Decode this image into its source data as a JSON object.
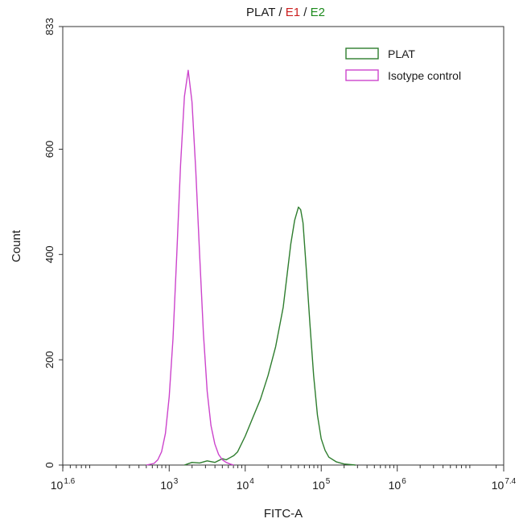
{
  "chart_data": {
    "type": "line",
    "title_parts": [
      {
        "text": "PLAT",
        "color": "#1a1a1a"
      },
      {
        "text": " / ",
        "color": "#1a1a1a"
      },
      {
        "text": "E1",
        "color": "#cc1f1f"
      },
      {
        "text": " / ",
        "color": "#1a1a1a"
      },
      {
        "text": "E2",
        "color": "#1c8a1c"
      }
    ],
    "xlabel": "FITC-A",
    "ylabel": "Count",
    "x_scale": "log10",
    "xlim": [
      1.6,
      7.4
    ],
    "ylim": [
      0,
      833
    ],
    "x_ticks": [
      {
        "exp": 1.6,
        "base": "10",
        "sup": "1.6"
      },
      {
        "exp": 3,
        "base": "10",
        "sup": "3"
      },
      {
        "exp": 4,
        "base": "10",
        "sup": "4"
      },
      {
        "exp": 5,
        "base": "10",
        "sup": "5"
      },
      {
        "exp": 6,
        "base": "10",
        "sup": "6"
      },
      {
        "exp": 7.4,
        "base": "10",
        "sup": "7.4"
      }
    ],
    "y_ticks": [
      0,
      200,
      400,
      600,
      833
    ],
    "legend_position": "top-right",
    "series": [
      {
        "name": "PLAT",
        "color": "#2e7d2e",
        "x_exp": [
          3.2,
          3.3,
          3.4,
          3.5,
          3.6,
          3.7,
          3.75,
          3.8,
          3.85,
          3.9,
          4.0,
          4.1,
          4.2,
          4.3,
          4.4,
          4.5,
          4.55,
          4.6,
          4.65,
          4.7,
          4.73,
          4.76,
          4.8,
          4.85,
          4.9,
          4.95,
          5.0,
          5.05,
          5.1,
          5.2,
          5.3,
          5.45
        ],
        "y": [
          0,
          5,
          4,
          8,
          5,
          12,
          10,
          14,
          18,
          25,
          55,
          90,
          125,
          170,
          225,
          300,
          360,
          420,
          465,
          490,
          485,
          460,
          380,
          270,
          170,
          95,
          50,
          28,
          15,
          6,
          2,
          0
        ]
      },
      {
        "name": "Isotype control",
        "color": "#cc44cc",
        "x_exp": [
          2.7,
          2.8,
          2.85,
          2.9,
          2.95,
          3.0,
          3.05,
          3.1,
          3.15,
          3.2,
          3.25,
          3.3,
          3.35,
          3.4,
          3.45,
          3.5,
          3.55,
          3.6,
          3.65,
          3.7,
          3.75,
          3.8,
          3.85
        ],
        "y": [
          0,
          3,
          10,
          25,
          60,
          130,
          240,
          400,
          570,
          700,
          750,
          690,
          560,
          400,
          250,
          140,
          75,
          40,
          20,
          10,
          5,
          2,
          0
        ]
      }
    ]
  }
}
